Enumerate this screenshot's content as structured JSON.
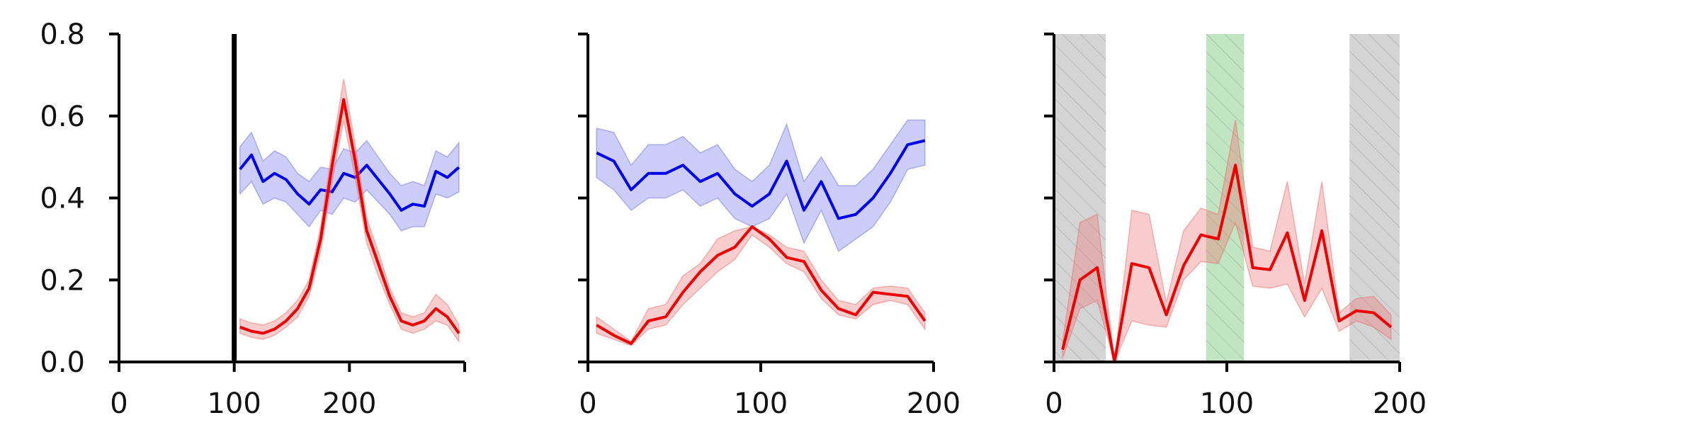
{
  "chart_data": [
    {
      "type": "line",
      "xlim": [
        0,
        300
      ],
      "ylim": [
        0,
        0.8
      ],
      "xticks": [
        "0",
        "100",
        "200"
      ],
      "yticks": [
        "0.0",
        "0.2",
        "0.4",
        "0.6",
        "0.8"
      ],
      "grid": false,
      "vline_x": 100,
      "series": [
        {
          "color": "#0000ee",
          "band_color": "#7070ee",
          "x": [
            105,
            115,
            125,
            135,
            145,
            155,
            165,
            175,
            185,
            195,
            205,
            215,
            225,
            235,
            245,
            255,
            265,
            275,
            285,
            295
          ],
          "y": [
            0.47,
            0.505,
            0.44,
            0.46,
            0.445,
            0.41,
            0.385,
            0.42,
            0.415,
            0.46,
            0.45,
            0.48,
            0.445,
            0.41,
            0.37,
            0.385,
            0.38,
            0.465,
            0.45,
            0.475
          ],
          "lower": [
            0.41,
            0.44,
            0.385,
            0.4,
            0.39,
            0.36,
            0.33,
            0.37,
            0.36,
            0.4,
            0.39,
            0.42,
            0.39,
            0.36,
            0.32,
            0.33,
            0.33,
            0.41,
            0.4,
            0.415
          ],
          "upper": [
            0.525,
            0.56,
            0.49,
            0.515,
            0.5,
            0.46,
            0.44,
            0.475,
            0.47,
            0.52,
            0.51,
            0.54,
            0.5,
            0.46,
            0.43,
            0.44,
            0.43,
            0.515,
            0.5,
            0.535
          ]
        },
        {
          "color": "#ee0000",
          "band_color": "#ee7070",
          "x": [
            105,
            115,
            125,
            135,
            145,
            155,
            165,
            175,
            185,
            195,
            205,
            215,
            225,
            235,
            245,
            255,
            265,
            275,
            285,
            295
          ],
          "y": [
            0.085,
            0.075,
            0.07,
            0.08,
            0.1,
            0.13,
            0.18,
            0.3,
            0.48,
            0.64,
            0.49,
            0.32,
            0.24,
            0.16,
            0.1,
            0.09,
            0.1,
            0.13,
            0.11,
            0.07
          ],
          "lower": [
            0.07,
            0.06,
            0.055,
            0.065,
            0.085,
            0.11,
            0.16,
            0.27,
            0.44,
            0.59,
            0.45,
            0.29,
            0.21,
            0.14,
            0.08,
            0.07,
            0.08,
            0.1,
            0.09,
            0.05
          ],
          "upper": [
            0.105,
            0.095,
            0.09,
            0.1,
            0.12,
            0.15,
            0.2,
            0.33,
            0.52,
            0.69,
            0.53,
            0.35,
            0.27,
            0.18,
            0.12,
            0.11,
            0.12,
            0.165,
            0.14,
            0.09
          ]
        }
      ]
    },
    {
      "type": "line",
      "xlim": [
        0,
        200
      ],
      "ylim": [
        0,
        0.8
      ],
      "xticks": [
        "0",
        "100",
        "200"
      ],
      "yticks": [
        "",
        "",
        "",
        "",
        ""
      ],
      "grid": false,
      "series": [
        {
          "color": "#0000ee",
          "band_color": "#7070ee",
          "x": [
            5,
            15,
            25,
            35,
            45,
            55,
            65,
            75,
            85,
            95,
            105,
            115,
            125,
            135,
            145,
            155,
            165,
            175,
            185,
            195
          ],
          "y": [
            0.51,
            0.49,
            0.42,
            0.46,
            0.46,
            0.48,
            0.44,
            0.46,
            0.41,
            0.38,
            0.41,
            0.49,
            0.37,
            0.44,
            0.35,
            0.36,
            0.4,
            0.46,
            0.53,
            0.54
          ],
          "lower": [
            0.45,
            0.42,
            0.37,
            0.4,
            0.4,
            0.42,
            0.38,
            0.4,
            0.35,
            0.33,
            0.35,
            0.41,
            0.29,
            0.37,
            0.27,
            0.3,
            0.33,
            0.39,
            0.47,
            0.48
          ],
          "upper": [
            0.57,
            0.56,
            0.48,
            0.53,
            0.53,
            0.55,
            0.51,
            0.53,
            0.47,
            0.44,
            0.48,
            0.58,
            0.44,
            0.5,
            0.43,
            0.43,
            0.47,
            0.53,
            0.59,
            0.59
          ]
        },
        {
          "color": "#ee0000",
          "band_color": "#ee7070",
          "x": [
            5,
            15,
            25,
            35,
            45,
            55,
            65,
            75,
            85,
            95,
            105,
            115,
            125,
            135,
            145,
            155,
            165,
            175,
            185,
            195
          ],
          "y": [
            0.09,
            0.065,
            0.045,
            0.1,
            0.11,
            0.17,
            0.22,
            0.26,
            0.28,
            0.33,
            0.3,
            0.255,
            0.245,
            0.175,
            0.13,
            0.115,
            0.17,
            0.165,
            0.16,
            0.1
          ],
          "lower": [
            0.07,
            0.055,
            0.04,
            0.08,
            0.09,
            0.14,
            0.18,
            0.22,
            0.25,
            0.31,
            0.28,
            0.24,
            0.22,
            0.155,
            0.115,
            0.105,
            0.14,
            0.15,
            0.14,
            0.08
          ],
          "upper": [
            0.11,
            0.08,
            0.05,
            0.13,
            0.14,
            0.21,
            0.24,
            0.3,
            0.32,
            0.33,
            0.31,
            0.28,
            0.27,
            0.2,
            0.15,
            0.14,
            0.18,
            0.185,
            0.18,
            0.12
          ]
        }
      ]
    },
    {
      "type": "line",
      "xlim": [
        0,
        200
      ],
      "ylim": [
        0,
        0.8
      ],
      "xticks": [
        "0",
        "100",
        "200"
      ],
      "yticks": [
        "",
        "",
        "",
        "",
        ""
      ],
      "grid": false,
      "shaded_regions": [
        {
          "x0": 0,
          "x1": 30,
          "color": "#b0b0b0"
        },
        {
          "x0": 88,
          "x1": 110,
          "color": "#8ccf8c"
        },
        {
          "x0": 171,
          "x1": 200,
          "color": "#b0b0b0"
        }
      ],
      "series": [
        {
          "color": "#ee0000",
          "band_color": "#ee7070",
          "x": [
            5,
            15,
            25,
            35,
            45,
            55,
            65,
            75,
            85,
            95,
            105,
            115,
            125,
            135,
            145,
            155,
            165,
            175,
            185,
            195
          ],
          "y": [
            0.03,
            0.2,
            0.23,
            0.0,
            0.24,
            0.23,
            0.115,
            0.235,
            0.31,
            0.3,
            0.48,
            0.23,
            0.225,
            0.315,
            0.15,
            0.32,
            0.1,
            0.125,
            0.12,
            0.085
          ],
          "lower": [
            0.01,
            0.13,
            0.15,
            0.0,
            0.1,
            0.09,
            0.085,
            0.2,
            0.245,
            0.24,
            0.34,
            0.185,
            0.18,
            0.19,
            0.11,
            0.18,
            0.075,
            0.1,
            0.085,
            0.055
          ],
          "upper": [
            0.05,
            0.34,
            0.36,
            0.0,
            0.37,
            0.36,
            0.145,
            0.32,
            0.375,
            0.36,
            0.59,
            0.28,
            0.27,
            0.44,
            0.19,
            0.44,
            0.12,
            0.155,
            0.16,
            0.115
          ]
        }
      ]
    }
  ]
}
